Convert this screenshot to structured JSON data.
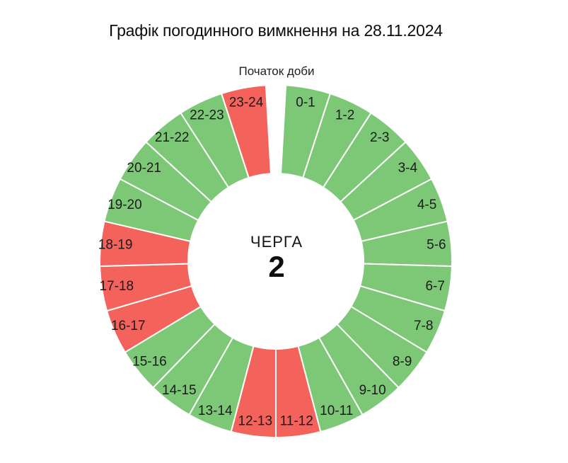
{
  "chart_data": {
    "type": "pie",
    "subtype": "donut-24-hour-schedule",
    "title": "Графік погодинного вимкнення на 28.11.2024",
    "start_of_day_label": "Початок доби",
    "center": {
      "label": "ЧЕРГА",
      "value": "2"
    },
    "categories": [
      "0-1",
      "1-2",
      "2-3",
      "3-4",
      "4-5",
      "5-6",
      "6-7",
      "7-8",
      "8-9",
      "9-10",
      "10-11",
      "11-12",
      "12-13",
      "13-14",
      "14-15",
      "15-16",
      "16-17",
      "17-18",
      "18-19",
      "19-20",
      "20-21",
      "21-22",
      "22-23",
      "23-24"
    ],
    "statuses": [
      "on",
      "on",
      "on",
      "on",
      "on",
      "on",
      "on",
      "on",
      "on",
      "on",
      "on",
      "off",
      "off",
      "on",
      "on",
      "on",
      "off",
      "off",
      "off",
      "on",
      "on",
      "on",
      "on",
      "off"
    ],
    "colors": {
      "on": "#7cc877",
      "off": "#f4625c"
    },
    "layout": {
      "gap_degrees": 6.5,
      "divider_color": "#ffffff",
      "legend": "none",
      "labels": "inside-near-outer-edge",
      "slice_values": "equal (1 hour each)"
    }
  }
}
